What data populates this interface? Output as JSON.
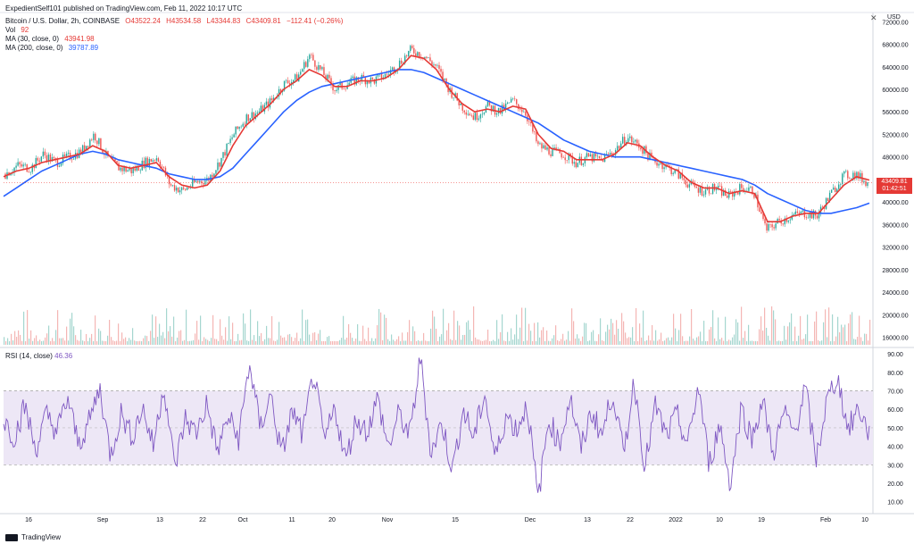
{
  "header": {
    "published": "ExpedientSelf101 published on TradingView.com, Feb 11, 2022 10:17 UTC",
    "symbol": "Bitcoin / U.S. Dollar, 2h, COINBASE",
    "open": "O43522.24",
    "high": "H43534.58",
    "low": "L43344.83",
    "close": "C43409.81",
    "change": "−112.41 (−0.26%)",
    "vol_label": "Vol",
    "vol_value": "92",
    "ma30_label": "MA (30, close, 0)",
    "ma30_value": "43941.98",
    "ma200_label": "MA (200, close, 0)",
    "ma200_value": "39787.89",
    "rsi_label": "RSI (14, close)",
    "rsi_value": "46.36"
  },
  "price_tag": {
    "price": "43409.81",
    "countdown": "01:42:51"
  },
  "currency": "USD",
  "footer": {
    "brand": "TradingView"
  },
  "colors": {
    "up": "#26a69a",
    "down": "#ef5350",
    "ma30": "#e53935",
    "ma200": "#2962ff",
    "rsi": "#7e57c2",
    "rsi_band": "#ede7f6"
  },
  "chart_data": [
    {
      "type": "candlestick",
      "title": "Bitcoin / U.S. Dollar, 2h, COINBASE",
      "y_axis_ticks": [
        "72000.00",
        "68000.00",
        "64000.00",
        "60000.00",
        "56000.00",
        "52000.00",
        "48000.00",
        "44000.00",
        "40000.00",
        "36000.00",
        "32000.00",
        "28000.00",
        "24000.00",
        "20000.00",
        "16000.00"
      ],
      "ylim": [
        14500,
        73000
      ],
      "x_tick_labels": [
        "16",
        "Sep",
        "13",
        "22",
        "Oct",
        "11",
        "20",
        "Nov",
        "15",
        "Dec",
        "13",
        "22",
        "2022",
        "10",
        "19",
        "Feb",
        "10"
      ],
      "price_close_path": [
        45000,
        46500,
        46000,
        48500,
        47000,
        48000,
        49000,
        52000,
        48000,
        46000,
        45500,
        47000,
        48000,
        43000,
        42000,
        43500,
        44000,
        47500,
        52000,
        55000,
        56000,
        58000,
        61000,
        62000,
        66000,
        63000,
        60000,
        61000,
        62000,
        61500,
        62500,
        64500,
        67000,
        66000,
        64000,
        60000,
        57000,
        55000,
        57000,
        56000,
        58000,
        56000,
        50000,
        49000,
        48500,
        47000,
        48000,
        47500,
        49000,
        51500,
        50000,
        47500,
        46500,
        45000,
        43000,
        42000,
        42500,
        41000,
        42500,
        42000,
        35000,
        36500,
        37500,
        38000,
        37500,
        41000,
        44500,
        45000,
        43400
      ],
      "ma30_path": [
        44500,
        45500,
        46000,
        47000,
        47500,
        48000,
        48500,
        50000,
        49000,
        46500,
        46000,
        46500,
        47000,
        44500,
        43000,
        42500,
        43000,
        45500,
        50000,
        53500,
        55500,
        57500,
        60000,
        61500,
        63500,
        62500,
        60500,
        60500,
        61500,
        61500,
        62000,
        63500,
        66000,
        65500,
        63500,
        60000,
        57500,
        56000,
        56500,
        56000,
        57000,
        56500,
        52000,
        49500,
        49000,
        47500,
        47500,
        47500,
        48500,
        50500,
        50000,
        48000,
        46500,
        45500,
        43500,
        42500,
        42500,
        41500,
        42000,
        41500,
        36500,
        36500,
        37500,
        38000,
        38000,
        40500,
        43000,
        44500,
        43900
      ],
      "ma200_path": [
        41000,
        42500,
        44000,
        45500,
        46500,
        47500,
        48500,
        49000,
        48500,
        47500,
        47000,
        46500,
        46000,
        45000,
        44500,
        44000,
        44000,
        44500,
        46000,
        48500,
        51000,
        53500,
        56000,
        58000,
        59500,
        60500,
        61000,
        61500,
        62000,
        62500,
        63000,
        63500,
        63500,
        63000,
        62000,
        61000,
        60000,
        59000,
        58000,
        57000,
        56000,
        55000,
        54000,
        52500,
        51000,
        50000,
        49000,
        48500,
        48000,
        48000,
        48000,
        47500,
        47000,
        46500,
        46000,
        45500,
        45000,
        44500,
        44000,
        43000,
        41500,
        40500,
        39500,
        38500,
        38000,
        38000,
        38500,
        39000,
        39800
      ],
      "volume": "overlaid red/green volume bars at chart bottom (values not labeled)"
    },
    {
      "type": "line",
      "title": "RSI (14, close)",
      "y_axis_ticks": [
        "90.00",
        "80.00",
        "70.00",
        "60.00",
        "50.00",
        "40.00",
        "30.00",
        "20.00",
        "10.00"
      ],
      "ylim": [
        6,
        92
      ],
      "band": [
        30,
        70
      ],
      "midline": 50,
      "rsi_path": [
        55,
        45,
        62,
        38,
        57,
        48,
        66,
        41,
        53,
        72,
        35,
        58,
        45,
        61,
        40,
        74,
        28,
        55,
        47,
        63,
        37,
        56,
        44,
        85,
        50,
        68,
        35,
        59,
        46,
        80,
        42,
        61,
        32,
        55,
        48,
        66,
        39,
        58,
        45,
        88,
        36,
        53,
        27,
        60,
        44,
        69,
        33,
        57,
        49,
        63,
        11,
        55,
        41,
        67,
        38,
        59,
        46,
        70,
        35,
        76,
        29,
        62,
        45,
        57,
        40,
        73,
        30,
        52,
        19,
        61,
        44,
        65,
        36,
        58,
        47,
        72,
        32,
        64,
        78,
        49,
        61,
        46
      ]
    }
  ]
}
